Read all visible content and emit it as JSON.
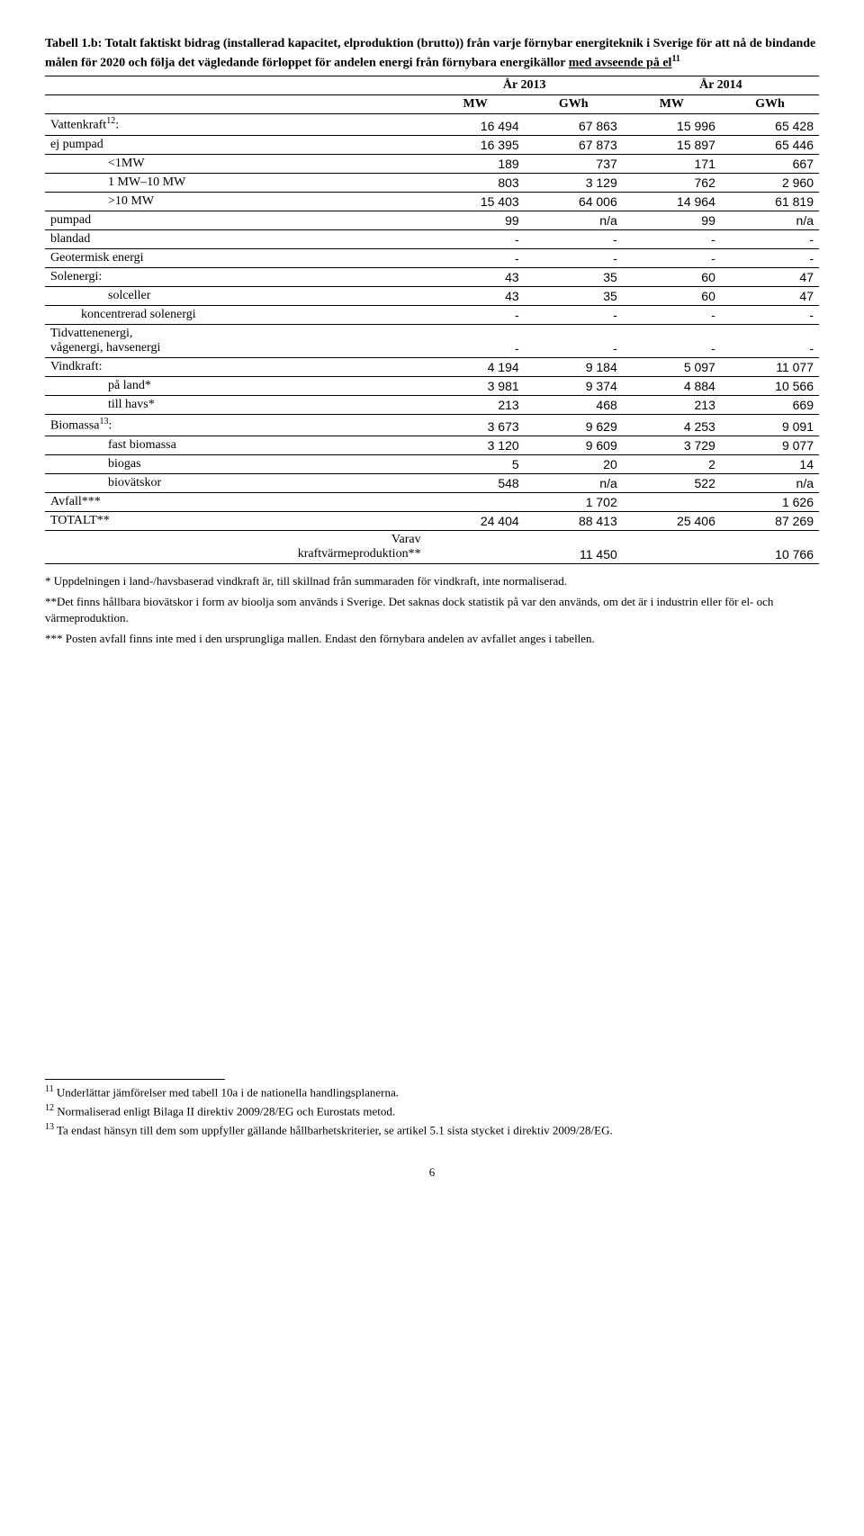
{
  "title": "Tabell 1.b: Totalt faktiskt bidrag (installerad kapacitet, elproduktion (brutto)) från varje förnybar energiteknik i Sverige för att nå de bindande målen för 2020 och följa det vägledande förloppet för andelen energi från förnybara energikällor ",
  "title_underlined": "med avseende på el",
  "title_sup": "11",
  "header": {
    "year1": "År 2013",
    "year2": "År 2014",
    "mw": "MW",
    "gwh": "GWh"
  },
  "rows": [
    {
      "label": "Vattenkraft",
      "sup": "12",
      "suffix": ":",
      "indent": "",
      "cells": [
        "16 494",
        "67 863",
        "15 996",
        "65 428"
      ],
      "sep": true
    },
    {
      "label": "ej pumpad",
      "indent": "",
      "cells": [
        "16 395",
        "67 873",
        "15 897",
        "65 446"
      ]
    },
    {
      "label": "<1MW",
      "indent": "indent1",
      "cells": [
        "189",
        "737",
        "171",
        "667"
      ]
    },
    {
      "label": "1 MW–10 MW",
      "indent": "indent1",
      "cells": [
        "803",
        "3 129",
        "762",
        "2 960"
      ]
    },
    {
      "label": ">10 MW",
      "indent": "indent1",
      "cells": [
        "15 403",
        "64 006",
        "14 964",
        "61 819"
      ]
    },
    {
      "label": "pumpad",
      "indent": "",
      "cells": [
        "99",
        "n/a",
        "99",
        "n/a"
      ]
    },
    {
      "label": "blandad",
      "indent": "",
      "cells": [
        "-",
        "-",
        "-",
        "-"
      ]
    },
    {
      "label": "Geotermisk energi",
      "indent": "",
      "cells": [
        "-",
        "-",
        "-",
        "-"
      ]
    },
    {
      "label": "Solenergi:",
      "indent": "",
      "cells": [
        "43",
        "35",
        "60",
        "47"
      ],
      "sep": true
    },
    {
      "label": "solceller",
      "indent": "indent1",
      "cells": [
        "43",
        "35",
        "60",
        "47"
      ]
    },
    {
      "label": "koncentrerad solenergi",
      "indent": "indent2",
      "cells": [
        "-",
        "-",
        "-",
        "-"
      ]
    },
    {
      "label": "Tidvattenenergi,\nvågenergi, havsenergi",
      "indent": "",
      "cells": [
        "-",
        "-",
        "-",
        "-"
      ]
    },
    {
      "label": "Vindkraft:",
      "indent": "",
      "cells": [
        "4 194",
        "9 184",
        "5 097",
        "11 077"
      ]
    },
    {
      "label": "på land*",
      "indent": "indent1",
      "cells": [
        "3 981",
        "9 374",
        "4 884",
        "10 566"
      ]
    },
    {
      "label": "till havs*",
      "indent": "indent1",
      "cells": [
        "213",
        "468",
        "213",
        "669"
      ]
    },
    {
      "label": "Biomassa",
      "sup": "13",
      "suffix": ":",
      "indent": "",
      "cells": [
        "3 673",
        "9 629",
        "4 253",
        "9 091"
      ]
    },
    {
      "label": "fast biomassa",
      "indent": "indent1",
      "cells": [
        "3 120",
        "9 609",
        "3 729",
        "9 077"
      ]
    },
    {
      "label": "biogas",
      "indent": "indent1",
      "cells": [
        "5",
        "20",
        "2",
        "14"
      ]
    },
    {
      "label": "biovätskor",
      "indent": "indent1",
      "cells": [
        "548",
        "n/a",
        "522",
        "n/a"
      ]
    },
    {
      "label": "Avfall***",
      "indent": "",
      "cells": [
        "",
        "1 702",
        "",
        "1 626"
      ]
    },
    {
      "label": "TOTALT**",
      "indent": "",
      "cells": [
        "24 404",
        "88 413",
        "25 406",
        "87 269"
      ]
    },
    {
      "label": "Varav\nkraftvärmeproduktion**",
      "indent": "indent1",
      "indentAlignRight": true,
      "cells": [
        "",
        "11 450",
        "",
        "10 766"
      ]
    }
  ],
  "notes": [
    "* Uppdelningen i land-/havsbaserad vindkraft är, till skillnad från summaraden för vindkraft, inte normaliserad.",
    "**Det finns hållbara biovätskor i form av bioolja som används i Sverige. Det saknas dock statistik på var den används, om det är i industrin eller för el- och värmeproduktion.",
    "*** Posten avfall finns inte med i den ursprungliga mallen. Endast den förnybara andelen av avfallet anges i tabellen."
  ],
  "footnotes": [
    {
      "n": "11",
      "text": "Underlättar jämförelser med tabell 10a i de nationella handlingsplanerna."
    },
    {
      "n": "12",
      "text": "Normaliserad enligt Bilaga II direktiv 2009/28/EG och Eurostats metod."
    },
    {
      "n": "13",
      "text": "Ta endast hänsyn till dem som uppfyller gällande hållbarhetskriterier, se artikel 5.1 sista stycket i direktiv 2009/28/EG."
    }
  ],
  "page": "6"
}
